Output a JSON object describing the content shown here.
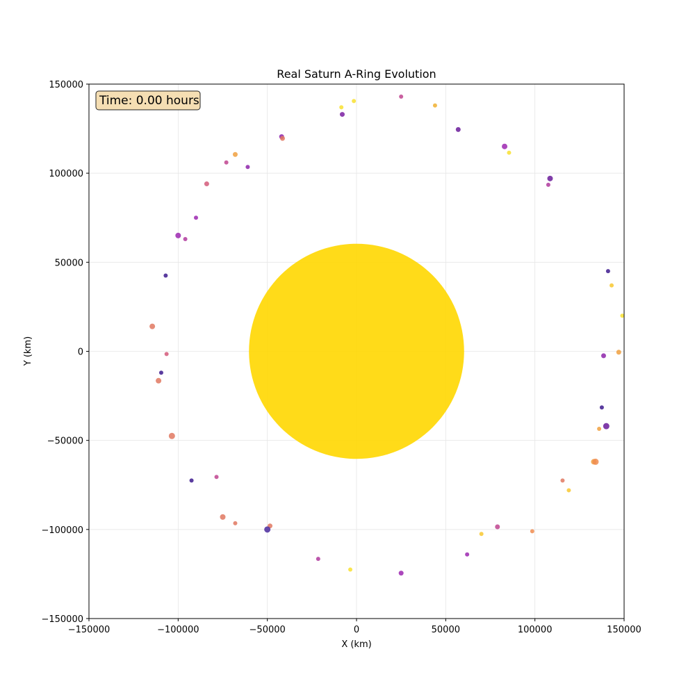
{
  "chart_data": {
    "type": "scatter",
    "title": "Real Saturn A-Ring Evolution",
    "xlabel": "X (km)",
    "ylabel": "Y (km)",
    "xlim": [
      -150000,
      150000
    ],
    "ylim": [
      -150000,
      150000
    ],
    "xticks": [
      -150000,
      -100000,
      -50000,
      0,
      50000,
      100000,
      150000
    ],
    "yticks": [
      -150000,
      -100000,
      -50000,
      0,
      50000,
      100000,
      150000
    ],
    "xtick_labels": [
      "−150000",
      "−100000",
      "−50000",
      "0",
      "50000",
      "100000",
      "150000"
    ],
    "ytick_labels": [
      "−150000",
      "−100000",
      "−50000",
      "0",
      "50000",
      "100000",
      "150000"
    ],
    "grid": true,
    "annotation": "Time: 0.00 hours",
    "annotation_box_color": "#f5deb3",
    "planet": {
      "x": 0,
      "y": 0,
      "radius": 60300,
      "color": "#ffd700"
    },
    "points": [
      {
        "x": 25000,
        "y": 143000,
        "s": 3,
        "c": "#c0448f"
      },
      {
        "x": 44000,
        "y": 138000,
        "s": 3,
        "c": "#f0b030"
      },
      {
        "x": -1500,
        "y": 140500,
        "s": 3,
        "c": "#f8e030"
      },
      {
        "x": -8500,
        "y": 137000,
        "s": 3,
        "c": "#f8e030"
      },
      {
        "x": -8000,
        "y": 133000,
        "s": 3.5,
        "c": "#7b1fa2"
      },
      {
        "x": 57000,
        "y": 124500,
        "s": 3.5,
        "c": "#6a1b9a"
      },
      {
        "x": -42000,
        "y": 120500,
        "s": 3.5,
        "c": "#8e24aa"
      },
      {
        "x": -41500,
        "y": 119500,
        "s": 3.5,
        "c": "#e07860"
      },
      {
        "x": 83000,
        "y": 115000,
        "s": 4,
        "c": "#9c27b0"
      },
      {
        "x": 85500,
        "y": 111500,
        "s": 3,
        "c": "#f8e030"
      },
      {
        "x": -68000,
        "y": 110500,
        "s": 3.5,
        "c": "#f0a040"
      },
      {
        "x": -73000,
        "y": 106000,
        "s": 3,
        "c": "#c0448f"
      },
      {
        "x": -61000,
        "y": 103500,
        "s": 3,
        "c": "#8e24aa"
      },
      {
        "x": 108500,
        "y": 97000,
        "s": 4,
        "c": "#6a1b9a"
      },
      {
        "x": 107500,
        "y": 93500,
        "s": 3,
        "c": "#b03a9e"
      },
      {
        "x": -84000,
        "y": 94000,
        "s": 3.5,
        "c": "#d45a7a"
      },
      {
        "x": -90000,
        "y": 75000,
        "s": 3,
        "c": "#9c27b0"
      },
      {
        "x": -100000,
        "y": 65000,
        "s": 4,
        "c": "#9c27b0"
      },
      {
        "x": -96000,
        "y": 63000,
        "s": 3,
        "c": "#b03a9e"
      },
      {
        "x": 141000,
        "y": 45000,
        "s": 3,
        "c": "#3d1a8e"
      },
      {
        "x": -107000,
        "y": 42500,
        "s": 3,
        "c": "#3d1a8e"
      },
      {
        "x": 143000,
        "y": 37000,
        "s": 3,
        "c": "#f8c830"
      },
      {
        "x": 149000,
        "y": 20000,
        "s": 3,
        "c": "#f8e030"
      },
      {
        "x": -114500,
        "y": 14000,
        "s": 4,
        "c": "#e07860"
      },
      {
        "x": -106500,
        "y": -1500,
        "s": 3,
        "c": "#d45a7a"
      },
      {
        "x": 147000,
        "y": -500,
        "s": 3.5,
        "c": "#f0a040"
      },
      {
        "x": 138500,
        "y": -2500,
        "s": 3.5,
        "c": "#8e24aa"
      },
      {
        "x": -109500,
        "y": -12000,
        "s": 3,
        "c": "#3d1a8e"
      },
      {
        "x": -111000,
        "y": -16500,
        "s": 4,
        "c": "#e07860"
      },
      {
        "x": 137500,
        "y": -31500,
        "s": 3,
        "c": "#3d1a8e"
      },
      {
        "x": 140000,
        "y": -42000,
        "s": 4.5,
        "c": "#6a1b9a"
      },
      {
        "x": 136000,
        "y": -43500,
        "s": 3,
        "c": "#f0a040"
      },
      {
        "x": -103500,
        "y": -47500,
        "s": 4.5,
        "c": "#e07860"
      },
      {
        "x": 133000,
        "y": -62000,
        "s": 4,
        "c": "#f0a040"
      },
      {
        "x": 134000,
        "y": -62000,
        "s": 4.5,
        "c": "#f08c50"
      },
      {
        "x": 115500,
        "y": -72500,
        "s": 3,
        "c": "#e07860"
      },
      {
        "x": 119000,
        "y": -78000,
        "s": 3,
        "c": "#f8c830"
      },
      {
        "x": -92500,
        "y": -72500,
        "s": 3,
        "c": "#3d1a8e"
      },
      {
        "x": -78500,
        "y": -70500,
        "s": 3,
        "c": "#c0448f"
      },
      {
        "x": -75000,
        "y": -93000,
        "s": 4,
        "c": "#e07860"
      },
      {
        "x": -68000,
        "y": -96500,
        "s": 3,
        "c": "#e07860"
      },
      {
        "x": -48500,
        "y": -98000,
        "s": 3.5,
        "c": "#e07860"
      },
      {
        "x": -50000,
        "y": -100000,
        "s": 4.5,
        "c": "#4a2a9e"
      },
      {
        "x": 79000,
        "y": -98500,
        "s": 3.5,
        "c": "#c0448f"
      },
      {
        "x": 98500,
        "y": -101000,
        "s": 3,
        "c": "#f08c50"
      },
      {
        "x": 70000,
        "y": -102500,
        "s": 3,
        "c": "#f8c830"
      },
      {
        "x": 62000,
        "y": -114000,
        "s": 3,
        "c": "#9c27b0"
      },
      {
        "x": -21500,
        "y": -116500,
        "s": 3,
        "c": "#b03a9e"
      },
      {
        "x": -3500,
        "y": -122500,
        "s": 3,
        "c": "#f8e030"
      },
      {
        "x": 25000,
        "y": -124500,
        "s": 3.5,
        "c": "#9c27b0"
      }
    ]
  }
}
